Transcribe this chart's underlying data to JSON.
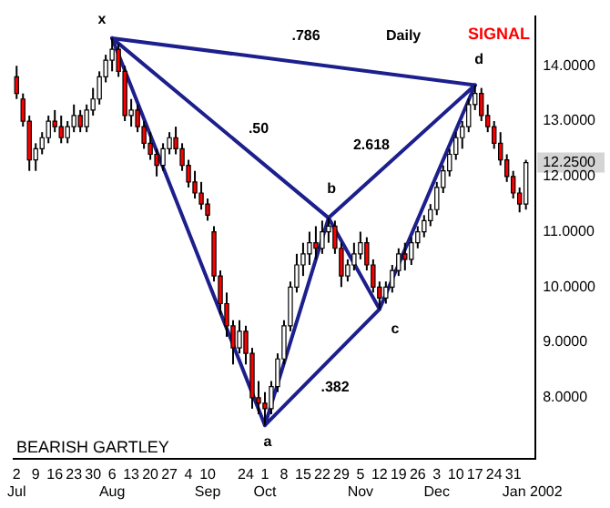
{
  "chart_data": {
    "type": "candlestick",
    "title": "Daily",
    "categories": [
      "2\nJul",
      null,
      null,
      "9",
      null,
      null,
      "16",
      null,
      null,
      "23",
      null,
      null,
      "30",
      null,
      null,
      "6\nAug",
      null,
      null,
      "13",
      null,
      null,
      "20",
      null,
      null,
      "27",
      null,
      null,
      "4",
      null,
      null,
      "10\nSep",
      null,
      null,
      null,
      null,
      null,
      "24",
      null,
      null,
      "1\nOct",
      null,
      null,
      "8",
      null,
      null,
      "15",
      null,
      null,
      "22",
      null,
      null,
      "29",
      null,
      null,
      "5\nNov",
      null,
      null,
      "12",
      null,
      null,
      "19",
      null,
      null,
      "26",
      null,
      null,
      "3\nDec",
      null,
      null,
      "10",
      null,
      null,
      "17",
      null,
      null,
      "24",
      null,
      null,
      "31",
      null,
      null,
      "\nJan 2002"
    ],
    "ohlc": [
      [
        13.8,
        14.0,
        13.4,
        13.5
      ],
      [
        13.4,
        13.5,
        12.9,
        13.0
      ],
      [
        13.0,
        13.1,
        12.1,
        12.3
      ],
      [
        12.3,
        12.6,
        12.1,
        12.5
      ],
      [
        12.5,
        12.8,
        12.4,
        12.7
      ],
      [
        12.7,
        13.1,
        12.6,
        13.0
      ],
      [
        13.0,
        13.2,
        12.8,
        12.9
      ],
      [
        12.9,
        13.1,
        12.6,
        12.7
      ],
      [
        12.7,
        13.0,
        12.6,
        12.9
      ],
      [
        12.9,
        13.3,
        12.8,
        13.1
      ],
      [
        13.1,
        13.2,
        12.8,
        12.9
      ],
      [
        12.9,
        13.3,
        12.8,
        13.2
      ],
      [
        13.2,
        13.6,
        13.1,
        13.4
      ],
      [
        13.4,
        13.9,
        13.3,
        13.8
      ],
      [
        13.8,
        14.2,
        13.7,
        14.1
      ],
      [
        14.1,
        14.5,
        13.9,
        14.3
      ],
      [
        14.3,
        14.4,
        13.8,
        13.9
      ],
      [
        13.9,
        14.0,
        13.0,
        13.1
      ],
      [
        13.1,
        13.4,
        12.9,
        13.2
      ],
      [
        13.2,
        13.3,
        12.8,
        12.9
      ],
      [
        12.9,
        13.0,
        12.5,
        12.6
      ],
      [
        12.6,
        12.8,
        12.3,
        12.4
      ],
      [
        12.4,
        12.5,
        12.0,
        12.2
      ],
      [
        12.2,
        12.6,
        12.1,
        12.5
      ],
      [
        12.5,
        12.8,
        12.4,
        12.7
      ],
      [
        12.7,
        12.9,
        12.4,
        12.5
      ],
      [
        12.5,
        12.6,
        12.1,
        12.2
      ],
      [
        12.2,
        12.3,
        11.8,
        11.9
      ],
      [
        11.9,
        12.1,
        11.6,
        11.7
      ],
      [
        11.7,
        11.9,
        11.4,
        11.5
      ],
      [
        11.5,
        11.6,
        11.2,
        11.3
      ],
      [
        11.0,
        11.1,
        10.1,
        10.2
      ],
      [
        10.2,
        10.3,
        9.5,
        9.7
      ],
      [
        9.7,
        9.9,
        9.1,
        9.3
      ],
      [
        9.3,
        9.4,
        8.6,
        8.9
      ],
      [
        8.9,
        9.4,
        8.8,
        9.2
      ],
      [
        9.2,
        9.3,
        8.6,
        8.8
      ],
      [
        8.8,
        8.9,
        7.8,
        8.0
      ],
      [
        8.0,
        8.3,
        7.7,
        7.9
      ],
      [
        7.9,
        8.1,
        7.5,
        7.8
      ],
      [
        7.8,
        8.3,
        7.7,
        8.2
      ],
      [
        8.2,
        8.8,
        8.1,
        8.7
      ],
      [
        8.7,
        9.4,
        8.6,
        9.3
      ],
      [
        9.3,
        10.1,
        9.2,
        10.0
      ],
      [
        10.0,
        10.6,
        9.9,
        10.4
      ],
      [
        10.4,
        10.8,
        10.2,
        10.6
      ],
      [
        10.6,
        11.0,
        10.4,
        10.8
      ],
      [
        10.8,
        11.1,
        10.5,
        10.7
      ],
      [
        10.7,
        11.2,
        10.6,
        11.0
      ],
      [
        11.0,
        11.25,
        10.8,
        11.1
      ],
      [
        11.1,
        11.2,
        10.6,
        10.7
      ],
      [
        10.7,
        10.8,
        10.0,
        10.2
      ],
      [
        10.2,
        10.5,
        10.1,
        10.4
      ],
      [
        10.4,
        10.8,
        10.3,
        10.6
      ],
      [
        10.6,
        11.0,
        10.5,
        10.8
      ],
      [
        10.8,
        10.9,
        10.3,
        10.4
      ],
      [
        10.4,
        10.5,
        9.9,
        10.0
      ],
      [
        10.0,
        10.1,
        9.6,
        9.8
      ],
      [
        9.8,
        10.1,
        9.7,
        10.0
      ],
      [
        10.0,
        10.4,
        9.9,
        10.3
      ],
      [
        10.3,
        10.7,
        10.2,
        10.6
      ],
      [
        10.6,
        10.8,
        10.3,
        10.5
      ],
      [
        10.5,
        10.9,
        10.4,
        10.8
      ],
      [
        10.8,
        11.1,
        10.7,
        11.0
      ],
      [
        11.0,
        11.3,
        10.9,
        11.2
      ],
      [
        11.2,
        11.5,
        11.1,
        11.4
      ],
      [
        11.4,
        11.9,
        11.3,
        11.8
      ],
      [
        11.8,
        12.2,
        11.7,
        12.1
      ],
      [
        12.1,
        12.5,
        12.0,
        12.4
      ],
      [
        12.4,
        12.8,
        12.3,
        12.7
      ],
      [
        12.7,
        13.0,
        12.5,
        12.9
      ],
      [
        12.9,
        13.4,
        12.8,
        13.3
      ],
      [
        13.3,
        13.65,
        13.2,
        13.5
      ],
      [
        13.5,
        13.6,
        13.0,
        13.1
      ],
      [
        13.1,
        13.3,
        12.8,
        12.9
      ],
      [
        12.9,
        13.0,
        12.5,
        12.6
      ],
      [
        12.6,
        12.8,
        12.2,
        12.3
      ],
      [
        12.3,
        12.4,
        11.9,
        12.0
      ],
      [
        12.0,
        12.1,
        11.6,
        11.7
      ],
      [
        11.7,
        11.8,
        11.35,
        11.5
      ],
      [
        11.5,
        12.3,
        11.4,
        12.25
      ],
      null
    ],
    "colors": [
      "#ff0000",
      "#ff0000",
      "#ff0000",
      "#ffffff",
      "#ffffff",
      "#ffffff",
      "#ff0000",
      "#ff0000",
      "#ffffff",
      "#ffffff",
      "#ff0000",
      "#ffffff",
      "#ffffff",
      "#ffffff",
      "#ffffff",
      "#ffffff",
      "#ff0000",
      "#ff0000",
      "#ffffff",
      "#ff0000",
      "#ff0000",
      "#ff0000",
      "#ff0000",
      "#ffffff",
      "#ffffff",
      "#ff0000",
      "#ff0000",
      "#ff0000",
      "#ff0000",
      "#ff0000",
      "#ff0000",
      "#ff0000",
      "#ff0000",
      "#ff0000",
      "#ff0000",
      "#ffffff",
      "#ff0000",
      "#ff0000",
      "#ff0000",
      "#ff0000",
      "#ffffff",
      "#ffffff",
      "#ffffff",
      "#ffffff",
      "#ffffff",
      "#ffffff",
      "#ffffff",
      "#ff0000",
      "#ffffff",
      "#ffffff",
      "#ff0000",
      "#ff0000",
      "#ffffff",
      "#ffffff",
      "#ffffff",
      "#ff0000",
      "#ff0000",
      "#ff0000",
      "#ffffff",
      "#ffffff",
      "#ffffff",
      "#ff0000",
      "#ffffff",
      "#ffffff",
      "#ffffff",
      "#ffffff",
      "#ffffff",
      "#ffffff",
      "#ffffff",
      "#ffffff",
      "#ffffff",
      "#ffffff",
      "#ffffff",
      "#ff0000",
      "#ff0000",
      "#ff0000",
      "#ff0000",
      "#ff0000",
      "#ff0000",
      "#ff0000",
      "#ffffff",
      null
    ],
    "series": [
      {
        "type": "line",
        "color": "#1c1f8c",
        "values": [
          null,
          null,
          null,
          null,
          null,
          null,
          null,
          null,
          null,
          null,
          null,
          null,
          null,
          null,
          null,
          14.5,
          null,
          null,
          null,
          null,
          null,
          null,
          null,
          null,
          null,
          null,
          null,
          null,
          null,
          null,
          null,
          null,
          null,
          null,
          null,
          null,
          null,
          null,
          null,
          7.5,
          null,
          null,
          null,
          null,
          null,
          null,
          null,
          null,
          null,
          11.25,
          null,
          null,
          null,
          null,
          null,
          null,
          null,
          9.6,
          null,
          null,
          null,
          null,
          null,
          null,
          null,
          null,
          null,
          null,
          null,
          null,
          null,
          null,
          13.65,
          null,
          null,
          null,
          null,
          null,
          null,
          null,
          null,
          null
        ]
      },
      {
        "type": "line",
        "color": "#1c1f8c",
        "values": [
          null,
          null,
          null,
          null,
          null,
          null,
          null,
          null,
          null,
          null,
          null,
          null,
          null,
          null,
          null,
          14.5,
          null,
          null,
          null,
          null,
          null,
          null,
          null,
          null,
          null,
          null,
          null,
          null,
          null,
          null,
          null,
          null,
          null,
          null,
          null,
          null,
          null,
          null,
          null,
          null,
          null,
          null,
          null,
          null,
          null,
          null,
          null,
          null,
          null,
          11.25,
          null,
          null,
          null,
          null,
          null,
          null,
          null,
          null,
          null,
          null,
          null,
          null,
          null,
          null,
          null,
          null,
          null,
          null,
          null,
          null,
          null,
          null,
          null,
          null,
          null,
          null,
          null,
          null,
          null,
          null,
          null,
          null
        ]
      },
      {
        "type": "line",
        "color": "#1c1f8c",
        "values": [
          null,
          null,
          null,
          null,
          null,
          null,
          null,
          null,
          null,
          null,
          null,
          null,
          null,
          null,
          null,
          14.5,
          null,
          null,
          null,
          null,
          null,
          null,
          null,
          null,
          null,
          null,
          null,
          null,
          null,
          null,
          null,
          null,
          null,
          null,
          null,
          null,
          null,
          null,
          null,
          null,
          null,
          null,
          null,
          null,
          null,
          null,
          null,
          null,
          null,
          null,
          null,
          null,
          null,
          null,
          null,
          null,
          null,
          null,
          null,
          null,
          null,
          null,
          null,
          null,
          null,
          null,
          null,
          null,
          null,
          null,
          null,
          null,
          13.65,
          null,
          null,
          null,
          null,
          null,
          null,
          null,
          null,
          null
        ]
      },
      {
        "type": "line",
        "color": "#1c1f8c",
        "values": [
          null,
          null,
          null,
          null,
          null,
          null,
          null,
          null,
          null,
          null,
          null,
          null,
          null,
          null,
          null,
          null,
          null,
          null,
          null,
          null,
          null,
          null,
          null,
          null,
          null,
          null,
          null,
          null,
          null,
          null,
          null,
          null,
          null,
          null,
          null,
          null,
          null,
          null,
          null,
          null,
          null,
          null,
          null,
          null,
          null,
          null,
          null,
          null,
          null,
          11.25,
          null,
          null,
          null,
          null,
          null,
          null,
          null,
          null,
          null,
          null,
          null,
          null,
          null,
          null,
          null,
          null,
          null,
          null,
          null,
          null,
          null,
          null,
          13.65,
          null,
          null,
          null,
          null,
          null,
          null,
          null,
          null,
          null
        ]
      },
      {
        "type": "line",
        "color": "#1c1f8c",
        "values": [
          null,
          null,
          null,
          null,
          null,
          null,
          null,
          null,
          null,
          null,
          null,
          null,
          null,
          null,
          null,
          null,
          null,
          null,
          null,
          null,
          null,
          null,
          null,
          null,
          null,
          null,
          null,
          null,
          null,
          null,
          null,
          null,
          null,
          null,
          null,
          null,
          null,
          null,
          null,
          7.5,
          null,
          null,
          null,
          null,
          null,
          null,
          null,
          null,
          null,
          null,
          null,
          null,
          null,
          null,
          null,
          null,
          null,
          9.6,
          null,
          null,
          null,
          null,
          null,
          null,
          null,
          null,
          null,
          null,
          null,
          null,
          null,
          null,
          null,
          null,
          null,
          null,
          null,
          null,
          null,
          null,
          null,
          null
        ]
      }
    ],
    "ylim": [
      6.9,
      14.9
    ],
    "yticks": [
      {
        "value": 8,
        "label": "8.0000"
      },
      {
        "value": 9,
        "label": "9.0000"
      },
      {
        "value": 10,
        "label": "10.0000"
      },
      {
        "value": 11,
        "label": "11.0000"
      },
      {
        "value": 12,
        "label": "12.0000"
      },
      {
        "value": 12.25,
        "label": "12.2500"
      },
      {
        "value": 13,
        "label": "13.0000"
      },
      {
        "value": 14,
        "label": "14.0000"
      }
    ],
    "annotations": [
      "x",
      "a",
      "b",
      "c",
      "d",
      ".786",
      ".50",
      "2.618",
      ".382",
      "SIGNAL",
      "BEARISH GARTLEY"
    ],
    "grid": false,
    "legend": false,
    "marker": "none"
  }
}
